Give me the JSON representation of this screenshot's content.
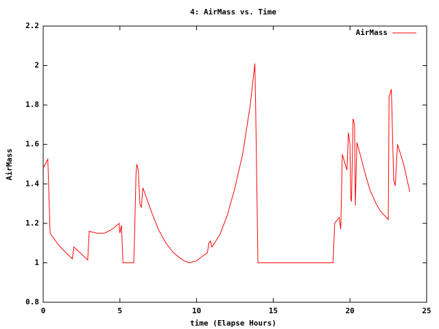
{
  "chart_data": {
    "type": "line",
    "title": "4: AirMass vs. Time",
    "x_label": "time (Elapse Hours)",
    "y_label": "AirMass",
    "xlim": [
      0,
      25
    ],
    "xticks": [
      0,
      5,
      10,
      15,
      20,
      25
    ],
    "ylim": [
      0.8,
      2.2
    ],
    "yticks": [
      0.8,
      1,
      1.2,
      1.4,
      1.6,
      1.8,
      2,
      2.2
    ],
    "legend": "top-right",
    "series": [
      {
        "name": "AirMass",
        "color": "#ff0000",
        "x": [
          0,
          0.2,
          0.3,
          0.45,
          1,
          1.5,
          1.9,
          2,
          2.9,
          3.0,
          3.5,
          4,
          4.5,
          4.95,
          5.0,
          5.1,
          5.2,
          5.9,
          5.95,
          6.05,
          6.1,
          6.2,
          6.3,
          6.4,
          6.5,
          7,
          7.5,
          8,
          8.5,
          9,
          9.2,
          9.5,
          10,
          10.5,
          10.7,
          10.8,
          10.9,
          11.0,
          11.5,
          12,
          12.5,
          13,
          13.5,
          13.8,
          13.85,
          14.0,
          18.9,
          19.0,
          19.3,
          19.4,
          19.5,
          19.8,
          19.9,
          20.0,
          20.05,
          20.1,
          20.2,
          20.3,
          20.35,
          20.45,
          20.7,
          21,
          21.3,
          21.7,
          22,
          22.5,
          22.55,
          22.7,
          22.85,
          22.95,
          23.1,
          23.5,
          23.9
        ],
        "values": [
          1.48,
          1.51,
          1.525,
          1.15,
          1.09,
          1.05,
          1.02,
          1.08,
          1.015,
          1.16,
          1.15,
          1.15,
          1.17,
          1.2,
          1.15,
          1.19,
          1.0,
          1.0,
          1.12,
          1.45,
          1.5,
          1.47,
          1.3,
          1.28,
          1.38,
          1.27,
          1.17,
          1.1,
          1.05,
          1.02,
          1.01,
          1.0,
          1.01,
          1.04,
          1.05,
          1.1,
          1.11,
          1.08,
          1.14,
          1.24,
          1.38,
          1.55,
          1.8,
          2.01,
          1.8,
          1.0,
          1.0,
          1.2,
          1.23,
          1.17,
          1.55,
          1.47,
          1.66,
          1.6,
          1.33,
          1.31,
          1.73,
          1.7,
          1.29,
          1.61,
          1.54,
          1.45,
          1.37,
          1.3,
          1.26,
          1.22,
          1.84,
          1.88,
          1.42,
          1.39,
          1.6,
          1.5,
          1.36
        ]
      }
    ]
  }
}
